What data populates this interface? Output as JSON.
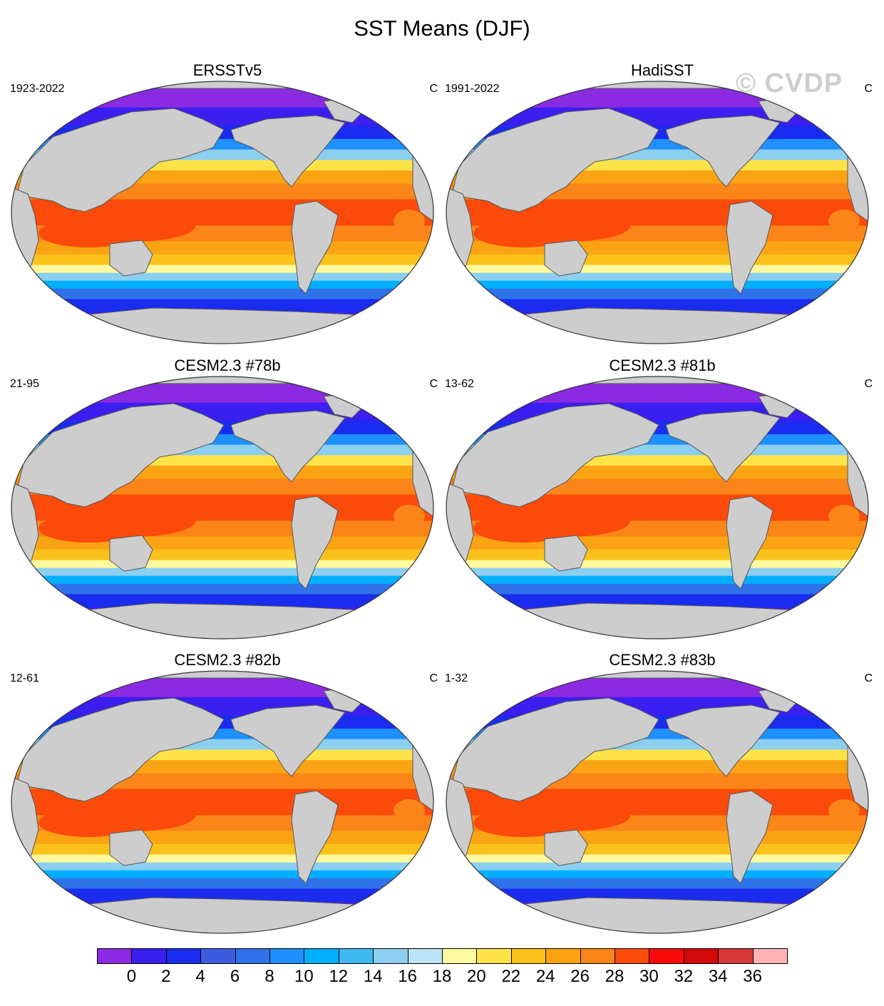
{
  "title": "SST Means (DJF)",
  "watermark": "© CVDP",
  "panels": [
    {
      "title": "ERSSTv5",
      "period": "1923-2022",
      "units": "C"
    },
    {
      "title": "HadiSST",
      "period": "1991-2022",
      "units": "C"
    },
    {
      "title": "CESM2.3 #78b",
      "period": "21-95",
      "units": "C"
    },
    {
      "title": "CESM2.3 #81b",
      "period": "13-62",
      "units": "C"
    },
    {
      "title": "CESM2.3 #82b",
      "period": "12-61",
      "units": "C"
    },
    {
      "title": "CESM2.3 #83b",
      "period": "1-32",
      "units": "C"
    }
  ],
  "colorbar": {
    "colors": [
      "#8a2be2",
      "#3a1ff0",
      "#1a2cf0",
      "#3c5ce0",
      "#2f72ea",
      "#1e90ff",
      "#00b0ff",
      "#40b8f0",
      "#8ccff0",
      "#bde3f8",
      "#fffaa0",
      "#fde34a",
      "#fcc21c",
      "#fba413",
      "#fb8518",
      "#fb4a0a",
      "#fb0a0a",
      "#d40808",
      "#d83838",
      "#ffb4b4"
    ],
    "labels": [
      "0",
      "2",
      "4",
      "6",
      "8",
      "10",
      "12",
      "14",
      "16",
      "18",
      "20",
      "22",
      "24",
      "26",
      "28",
      "30",
      "32",
      "34",
      "36"
    ]
  },
  "map_colors": {
    "land": "#cdcdcd",
    "coast": "#555555"
  }
}
